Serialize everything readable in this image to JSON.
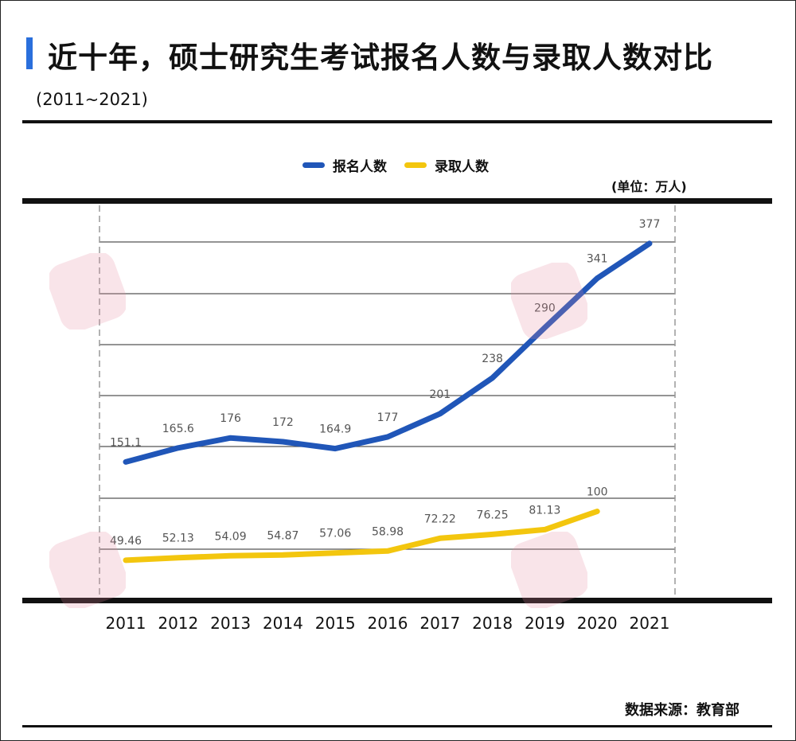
{
  "header": {
    "title": "近十年，硕士研究生考试报名人数与录取人数对比",
    "subtitle": "(2011~2021)"
  },
  "legend": {
    "items": [
      {
        "label": "报名人数",
        "color": "#2056b8"
      },
      {
        "label": "录取人数",
        "color": "#f3c60e"
      }
    ]
  },
  "unit_note": "(单位：万人)",
  "source_note": "数据来源：教育部",
  "chart_data": {
    "type": "line",
    "title": "近十年，硕士研究生考试报名人数与录取人数对比",
    "subtitle": "(2011~2021)",
    "xlabel": "",
    "ylabel": "",
    "unit": "万人",
    "categories": [
      "2011",
      "2012",
      "2013",
      "2014",
      "2015",
      "2016",
      "2017",
      "2018",
      "2019",
      "2020",
      "2021"
    ],
    "ylim": [
      0,
      400
    ],
    "grid": true,
    "legend_position": "top-center",
    "series": [
      {
        "name": "报名人数",
        "color": "#2056b8",
        "values": [
          151.1,
          165.6,
          176,
          172,
          164.9,
          177,
          201,
          238,
          290,
          341,
          377
        ],
        "labels": [
          "151.1",
          "165.6",
          "176",
          "172",
          "164.9",
          "177",
          "201",
          "238",
          "290",
          "341",
          "377"
        ]
      },
      {
        "name": "录取人数",
        "color": "#f3c60e",
        "values": [
          49.46,
          52.13,
          54.09,
          54.87,
          57.06,
          58.98,
          72.22,
          76.25,
          81.13,
          100,
          null
        ],
        "labels": [
          "49.46",
          "52.13",
          "54.09",
          "54.87",
          "57.06",
          "58.98",
          "72.22",
          "76.25",
          "81.13",
          "100",
          ""
        ]
      }
    ]
  }
}
